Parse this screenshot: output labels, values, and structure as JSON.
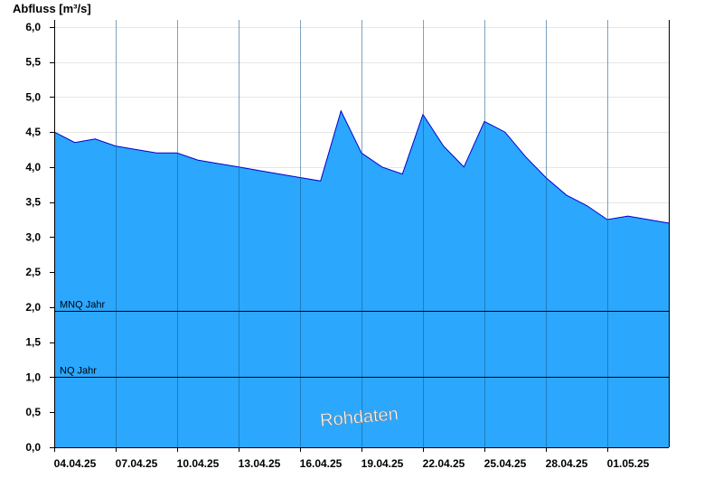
{
  "chart_data": {
    "type": "area",
    "ylabel": "Abfluss [m³/s]",
    "ylim": [
      0,
      6.1
    ],
    "yticks": [
      "0,0",
      "0,5",
      "1,0",
      "1,5",
      "2,0",
      "2,5",
      "3,0",
      "3,5",
      "4,0",
      "4,5",
      "5,0",
      "5,5",
      "6,0"
    ],
    "ytick_values": [
      0,
      0.5,
      1.0,
      1.5,
      2.0,
      2.5,
      3.0,
      3.5,
      4.0,
      4.5,
      5.0,
      5.5,
      6.0
    ],
    "xlim": [
      "2025-04-04",
      "2025-05-04"
    ],
    "xticks": [
      "04.04.25",
      "07.04.25",
      "10.04.25",
      "13.04.25",
      "16.04.25",
      "19.04.25",
      "22.04.25",
      "25.04.25",
      "28.04.25",
      "01.05.25"
    ],
    "xtick_dates": [
      "2025-04-04",
      "2025-04-07",
      "2025-04-10",
      "2025-04-13",
      "2025-04-16",
      "2025-04-19",
      "2025-04-22",
      "2025-04-25",
      "2025-04-28",
      "2025-05-01"
    ],
    "grid": true,
    "fill_color": "#2ba7fe",
    "line_color": "#0000cc",
    "series": [
      {
        "x": [
          "2025-04-04",
          "2025-04-05",
          "2025-04-06",
          "2025-04-07",
          "2025-04-08",
          "2025-04-09",
          "2025-04-10",
          "2025-04-11",
          "2025-04-12",
          "2025-04-13",
          "2025-04-14",
          "2025-04-15",
          "2025-04-16",
          "2025-04-17",
          "2025-04-18",
          "2025-04-19",
          "2025-04-20",
          "2025-04-21",
          "2025-04-22",
          "2025-04-23",
          "2025-04-24",
          "2025-04-25",
          "2025-04-26",
          "2025-04-27",
          "2025-04-28",
          "2025-04-29",
          "2025-04-30",
          "2025-05-01",
          "2025-05-02",
          "2025-05-03",
          "2025-05-04"
        ],
        "values": [
          4.5,
          4.35,
          4.4,
          4.3,
          4.25,
          4.2,
          4.2,
          4.1,
          4.05,
          4.0,
          3.95,
          3.9,
          3.85,
          3.8,
          4.8,
          4.2,
          4.0,
          3.9,
          4.75,
          4.3,
          4.0,
          4.65,
          4.5,
          4.15,
          3.85,
          3.6,
          3.45,
          3.25,
          3.3,
          3.25,
          3.2
        ]
      }
    ],
    "reference_lines": [
      {
        "label": "MNQ Jahr",
        "value": 1.95
      },
      {
        "label": "NQ Jahr",
        "value": 1.0
      }
    ],
    "watermark": "Rohdaten"
  }
}
